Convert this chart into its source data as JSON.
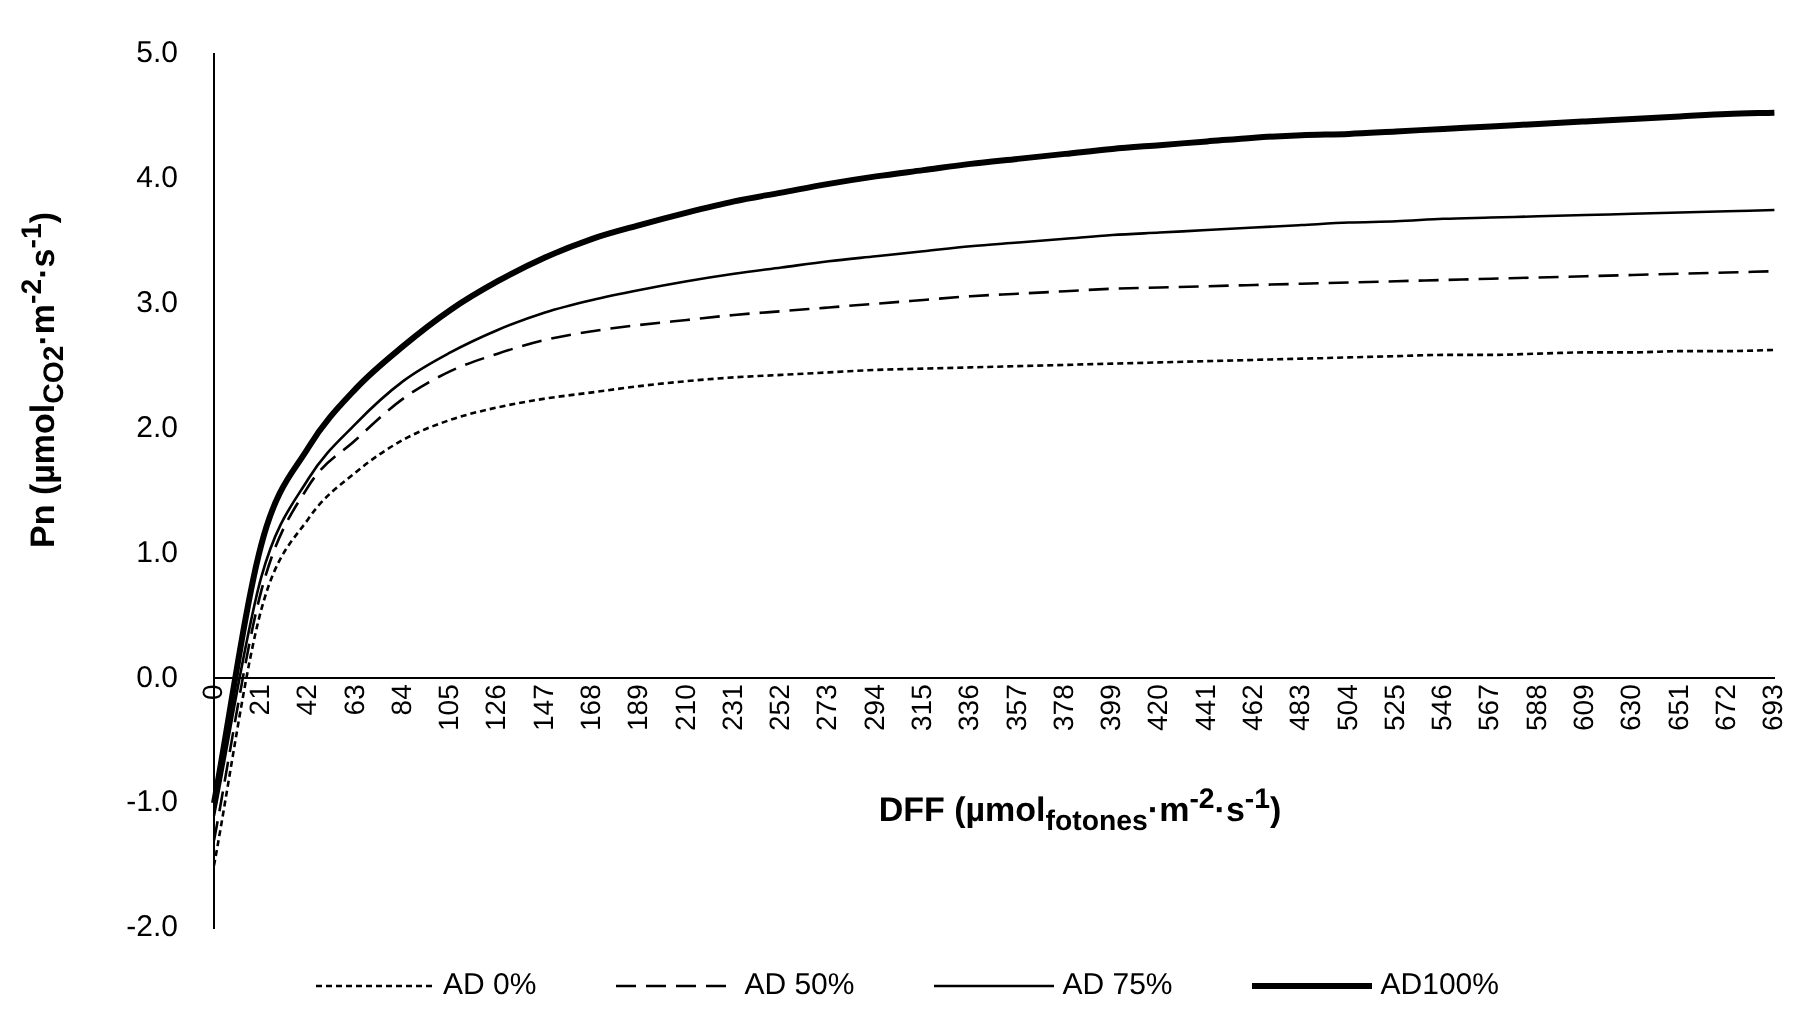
{
  "chart_data": {
    "type": "line",
    "categories": [
      "0",
      "21",
      "42",
      "63",
      "84",
      "105",
      "126",
      "147",
      "168",
      "189",
      "210",
      "231",
      "252",
      "273",
      "294",
      "315",
      "336",
      "357",
      "378",
      "399",
      "420",
      "441",
      "462",
      "483",
      "504",
      "525",
      "546",
      "567",
      "588",
      "609",
      "630",
      "651",
      "672",
      "693"
    ],
    "series": [
      {
        "name": "AD 0%",
        "color": "#000000",
        "line_style": "dotted",
        "values": [
          -1.5,
          0.55,
          1.28,
          1.65,
          1.91,
          2.07,
          2.17,
          2.24,
          2.29,
          2.34,
          2.38,
          2.41,
          2.43,
          2.45,
          2.47,
          2.48,
          2.49,
          2.5,
          2.51,
          2.52,
          2.53,
          2.54,
          2.55,
          2.56,
          2.57,
          2.58,
          2.59,
          2.59,
          2.6,
          2.61,
          2.61,
          2.62,
          2.62,
          2.63
        ]
      },
      {
        "name": "AD 50%",
        "color": "#000000",
        "line_style": "dashed",
        "values": [
          -1.3,
          0.7,
          1.54,
          1.91,
          2.24,
          2.46,
          2.6,
          2.71,
          2.78,
          2.83,
          2.87,
          2.91,
          2.94,
          2.97,
          3.0,
          3.03,
          3.06,
          3.08,
          3.1,
          3.12,
          3.13,
          3.14,
          3.15,
          3.16,
          3.17,
          3.18,
          3.19,
          3.2,
          3.21,
          3.22,
          3.23,
          3.24,
          3.25,
          3.26
        ]
      },
      {
        "name": "AD 75%",
        "color": "#000000",
        "line_style": "solid",
        "values": [
          -1.1,
          0.81,
          1.6,
          2.04,
          2.38,
          2.61,
          2.79,
          2.93,
          3.03,
          3.11,
          3.18,
          3.24,
          3.29,
          3.34,
          3.38,
          3.42,
          3.46,
          3.49,
          3.52,
          3.55,
          3.57,
          3.59,
          3.61,
          3.63,
          3.65,
          3.66,
          3.68,
          3.69,
          3.7,
          3.71,
          3.72,
          3.73,
          3.74,
          3.75
        ]
      },
      {
        "name": "AD100%",
        "color": "#000000",
        "line_style": "solid",
        "values": [
          -1.0,
          1.07,
          1.85,
          2.32,
          2.66,
          2.95,
          3.18,
          3.37,
          3.52,
          3.63,
          3.73,
          3.82,
          3.89,
          3.96,
          4.02,
          4.07,
          4.12,
          4.16,
          4.2,
          4.24,
          4.27,
          4.3,
          4.33,
          4.35,
          4.36,
          4.38,
          4.4,
          4.42,
          4.44,
          4.46,
          4.48,
          4.5,
          4.52,
          4.53
        ]
      }
    ],
    "xlabel": "DFF (µmol$_{fotones}$·m$^{-2}$·s$^{-1}$)",
    "ylabel": "Pn (µmol$_{CO2}$·m$^{-2}$·s$^{-1}$)",
    "ylim": [
      -2,
      5
    ],
    "yticks": [
      {
        "value": -2,
        "label": "-2.0"
      },
      {
        "value": -1,
        "label": "-1.0"
      },
      {
        "value": 0,
        "label": "0.0"
      },
      {
        "value": 1,
        "label": "1.0"
      },
      {
        "value": 2,
        "label": "2.0"
      },
      {
        "value": 3,
        "label": "3.0"
      },
      {
        "value": 4,
        "label": "4.0"
      },
      {
        "value": 5,
        "label": "5.0"
      }
    ],
    "grid": false,
    "legend": "bottom",
    "marker": "none"
  }
}
